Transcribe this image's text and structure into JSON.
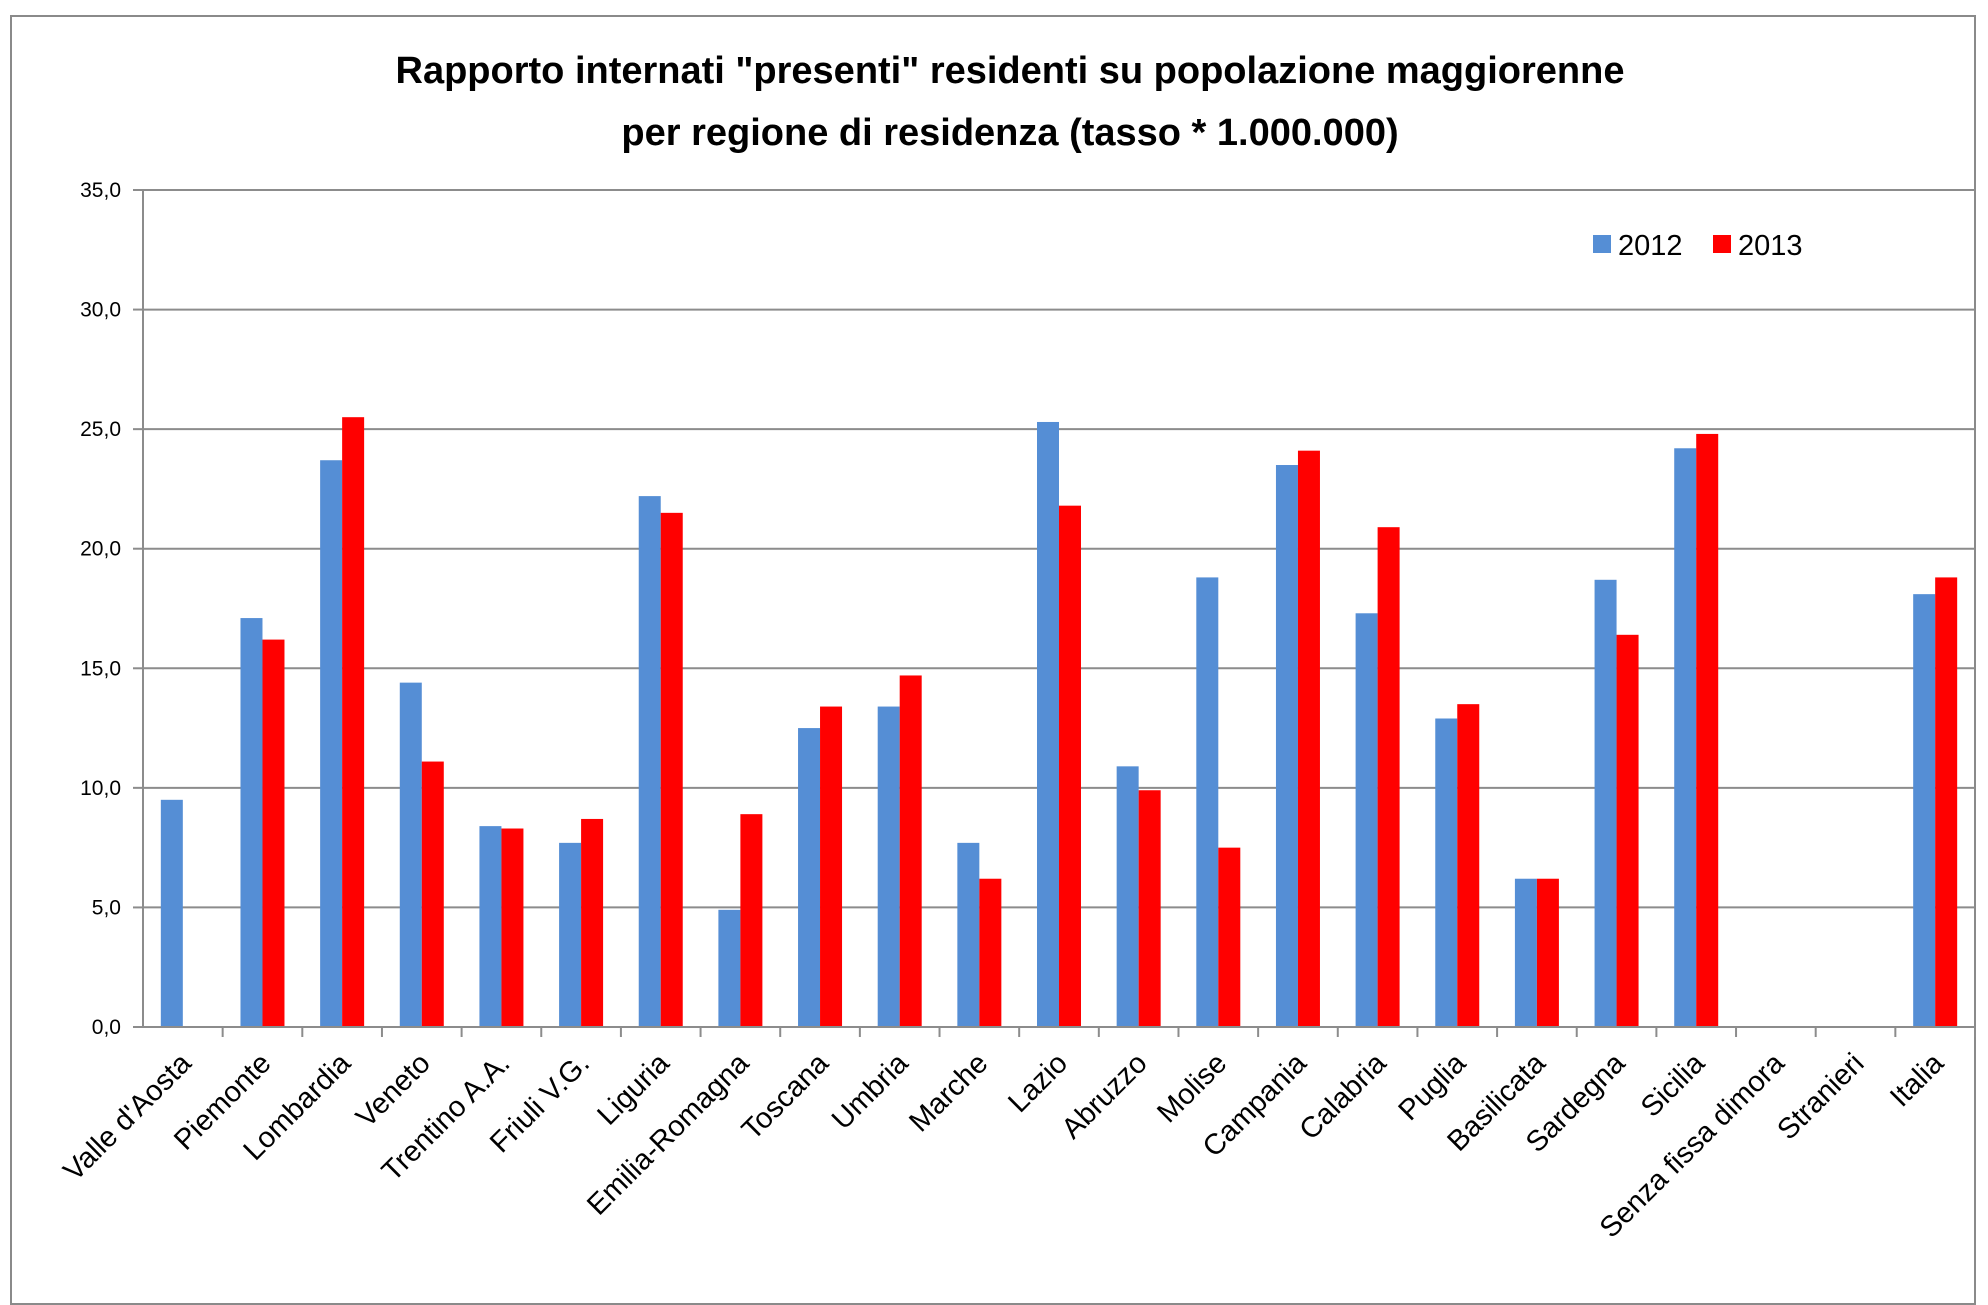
{
  "chart_data": {
    "type": "bar",
    "title": "Rapporto internati \"presenti\" residenti su popolazione maggiorenne",
    "subtitle": "per regione di residenza (tasso * 1.000.000)",
    "xlabel": "",
    "ylabel": "",
    "ylim": [
      0,
      35
    ],
    "yticks": [
      "0,0",
      "5,0",
      "10,0",
      "15,0",
      "20,0",
      "25,0",
      "30,0",
      "35,0"
    ],
    "grid": true,
    "legend_position": "top-right",
    "categories": [
      "Valle d'Aosta",
      "Piemonte",
      "Lombardia",
      "Veneto",
      "Trentino A.A.",
      "Friuli V.G.",
      "Liguria",
      "Emilia-Romagna",
      "Toscana",
      "Umbria",
      "Marche",
      "Lazio",
      "Abruzzo",
      "Molise",
      "Campania",
      "Calabria",
      "Puglia",
      "Basilicata",
      "Sardegna",
      "Sicilia",
      "Senza fissa dimora",
      "Stranieri",
      "Italia"
    ],
    "series": [
      {
        "name": "2012",
        "color": "#558ED5",
        "values": [
          9.5,
          17.1,
          23.7,
          14.4,
          8.4,
          7.7,
          22.2,
          4.9,
          12.5,
          13.4,
          7.7,
          25.3,
          10.9,
          18.8,
          23.5,
          17.3,
          12.9,
          6.2,
          18.7,
          24.2,
          0,
          0,
          18.1
        ]
      },
      {
        "name": "2013",
        "color": "#FF0000",
        "values": [
          0,
          16.2,
          25.5,
          11.1,
          8.3,
          8.7,
          21.5,
          8.9,
          13.4,
          14.7,
          6.2,
          21.8,
          9.9,
          7.5,
          24.1,
          20.9,
          13.5,
          6.2,
          16.4,
          24.8,
          0,
          0,
          18.8
        ]
      }
    ]
  }
}
